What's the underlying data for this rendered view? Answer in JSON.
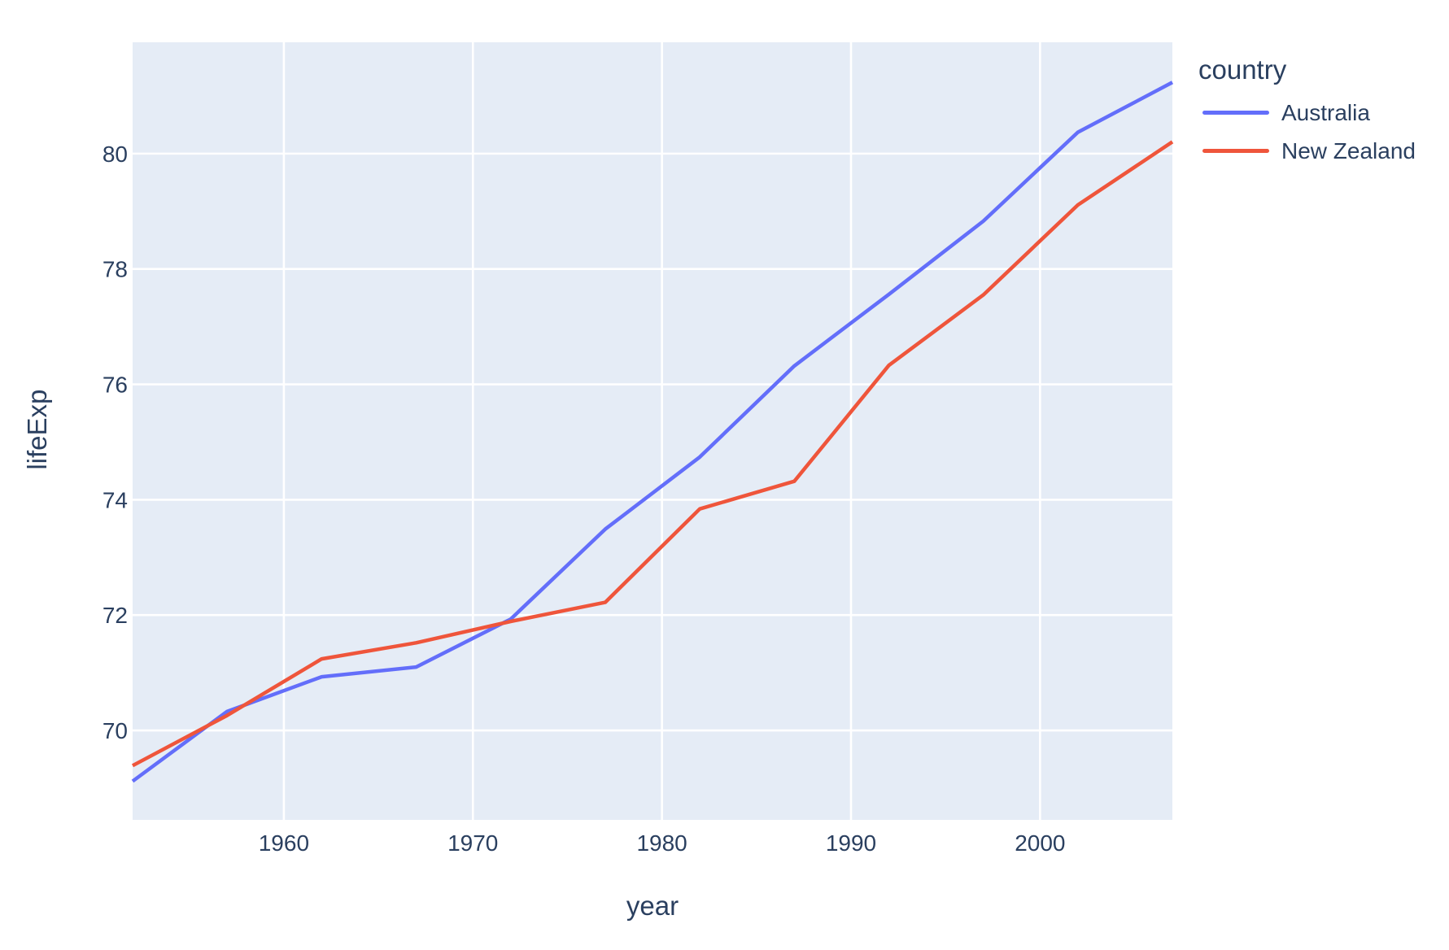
{
  "chart_data": {
    "type": "line",
    "title": "",
    "xlabel": "year",
    "ylabel": "lifeExp",
    "legend_title": "country",
    "legend_position": "right",
    "grid": true,
    "x": [
      1952,
      1957,
      1962,
      1967,
      1972,
      1977,
      1982,
      1987,
      1992,
      1997,
      2002,
      2007
    ],
    "series": [
      {
        "name": "Australia",
        "color": "#636EFA",
        "values": [
          69.12,
          70.33,
          70.93,
          71.1,
          71.93,
          73.49,
          74.74,
          76.32,
          77.56,
          78.83,
          80.37,
          81.235
        ]
      },
      {
        "name": "New Zealand",
        "color": "#EF553B",
        "values": [
          69.39,
          70.26,
          71.24,
          71.52,
          71.89,
          72.22,
          73.84,
          74.32,
          76.33,
          77.55,
          79.11,
          80.204
        ]
      }
    ],
    "x_ticks": [
      "1960",
      "1970",
      "1980",
      "1990",
      "2000"
    ],
    "x_tick_values": [
      1960,
      1970,
      1980,
      1990,
      2000
    ],
    "y_ticks": [
      "70",
      "72",
      "74",
      "76",
      "78",
      "80"
    ],
    "y_tick_values": [
      70,
      72,
      74,
      76,
      78,
      80
    ],
    "x_range": [
      1952,
      2007
    ],
    "y_range": [
      68.45,
      81.93
    ],
    "colors": {
      "paper_bg": "#FFFFFF",
      "plot_bg": "#E5ECF6",
      "grid": "#FFFFFF",
      "font": "#2A3F5F"
    }
  }
}
